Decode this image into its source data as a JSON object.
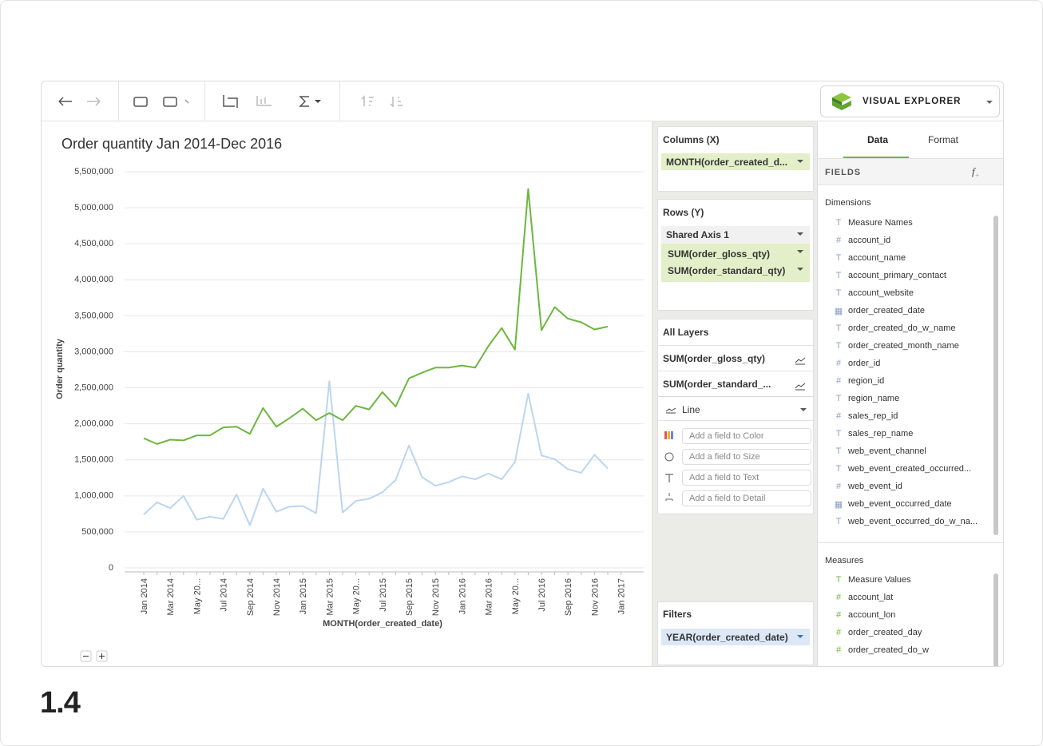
{
  "toolbar": {
    "brand": "VISUAL EXPLORER"
  },
  "chart_data": {
    "type": "line",
    "title": "Order quantity Jan 2014-Dec 2016",
    "x_label": "MONTH(order_created_date)",
    "y_label": "Order quantity",
    "categories": [
      "Jan 2014",
      null,
      "Mar 2014",
      null,
      "May 20...",
      null,
      "Jul 2014",
      null,
      "Sep 2014",
      null,
      "Nov 2014",
      null,
      "Jan 2015",
      null,
      "Mar 2015",
      null,
      "May 20...",
      null,
      "Jul 2015",
      null,
      "Sep 2015",
      null,
      "Nov 2015",
      null,
      "Jan 2016",
      null,
      "Mar 2016",
      null,
      "May 20...",
      null,
      "Jul 2016",
      null,
      "Sep 2016",
      null,
      "Nov 2016",
      null,
      "Jan 2017"
    ],
    "series": [
      {
        "name": "SUM(order_gloss_qty)",
        "color": "#bcd5f1",
        "values": [
          740000,
          910000,
          830000,
          1000000,
          670000,
          710000,
          680000,
          1020000,
          590000,
          1100000,
          780000,
          850000,
          860000,
          760000,
          2590000,
          770000,
          930000,
          960000,
          1050000,
          1220000,
          1700000,
          1260000,
          1140000,
          1190000,
          1270000,
          1230000,
          1310000,
          1230000,
          1470000,
          2420000,
          1560000,
          1510000,
          1370000,
          1320000,
          1570000,
          1380000,
          null
        ]
      },
      {
        "name": "SUM(order_standard_qty)",
        "color": "#6cb73e",
        "values": [
          1800000,
          1720000,
          1780000,
          1770000,
          1840000,
          1840000,
          1950000,
          1960000,
          1860000,
          2220000,
          1960000,
          2080000,
          2210000,
          2050000,
          2150000,
          2050000,
          2250000,
          2200000,
          2440000,
          2240000,
          2630000,
          2710000,
          2780000,
          2780000,
          2810000,
          2780000,
          3080000,
          3330000,
          3030000,
          5260000,
          3300000,
          3620000,
          3460000,
          3410000,
          3310000,
          3350000,
          null
        ]
      }
    ],
    "ylim": [
      0,
      5500000
    ],
    "yticks": [
      0,
      {
        "value": 500000,
        "label": "500,000"
      },
      {
        "value": 1000000,
        "label": "1,000,000"
      },
      {
        "value": 1500000,
        "label": "1,500,000"
      },
      {
        "value": 2000000,
        "label": "2,000,000"
      },
      {
        "value": 2500000,
        "label": "2,500,000"
      },
      {
        "value": 3000000,
        "label": "3,000,000"
      },
      {
        "value": 3500000,
        "label": "3,500,000"
      },
      {
        "value": 4000000,
        "label": "4,000,000"
      },
      {
        "value": 4500000,
        "label": "4,500,000"
      },
      {
        "value": 5000000,
        "label": "5,000,000"
      },
      {
        "value": 5500000,
        "label": "5,500,000"
      }
    ],
    "grid": true
  },
  "shelves": {
    "columns_title": "Columns (X)",
    "columns_pill": "MONTH(order_created_d...",
    "rows_title": "Rows (Y)",
    "rows_axis": "Shared Axis 1",
    "layers_title": "All Layers",
    "layer_items": [
      "SUM(order_gloss_qty)",
      "SUM(order_standard_..."
    ],
    "mark": "Line",
    "encodings": [
      "Add a field to Color",
      "Add a field to Size",
      "Add a field to Text",
      "Add a field to Detail"
    ],
    "filters_title": "Filters",
    "filter_pill": "YEAR(order_created_date)"
  },
  "fields": {
    "tabs": [
      "Data",
      "Format"
    ],
    "heading": "FIELDS",
    "dimensions_title": "Dimensions",
    "dimensions": [
      "Measure Names",
      "account_id",
      "account_name",
      "account_primary_contact",
      "account_website",
      "order_created_date",
      "order_created_do_w_name",
      "order_created_month_name",
      "order_id",
      "region_id",
      "region_name",
      "sales_rep_id",
      "sales_rep_name",
      "web_event_channel",
      "web_event_created_occurred...",
      "web_event_id",
      "web_event_occurred_date",
      "web_event_occurred_do_w_na..."
    ],
    "measures_title": "Measures",
    "measures": [
      "Measure Values",
      "account_lat",
      "account_lon",
      "order_created_day",
      "order_created_do_w"
    ]
  },
  "version": "1.4"
}
